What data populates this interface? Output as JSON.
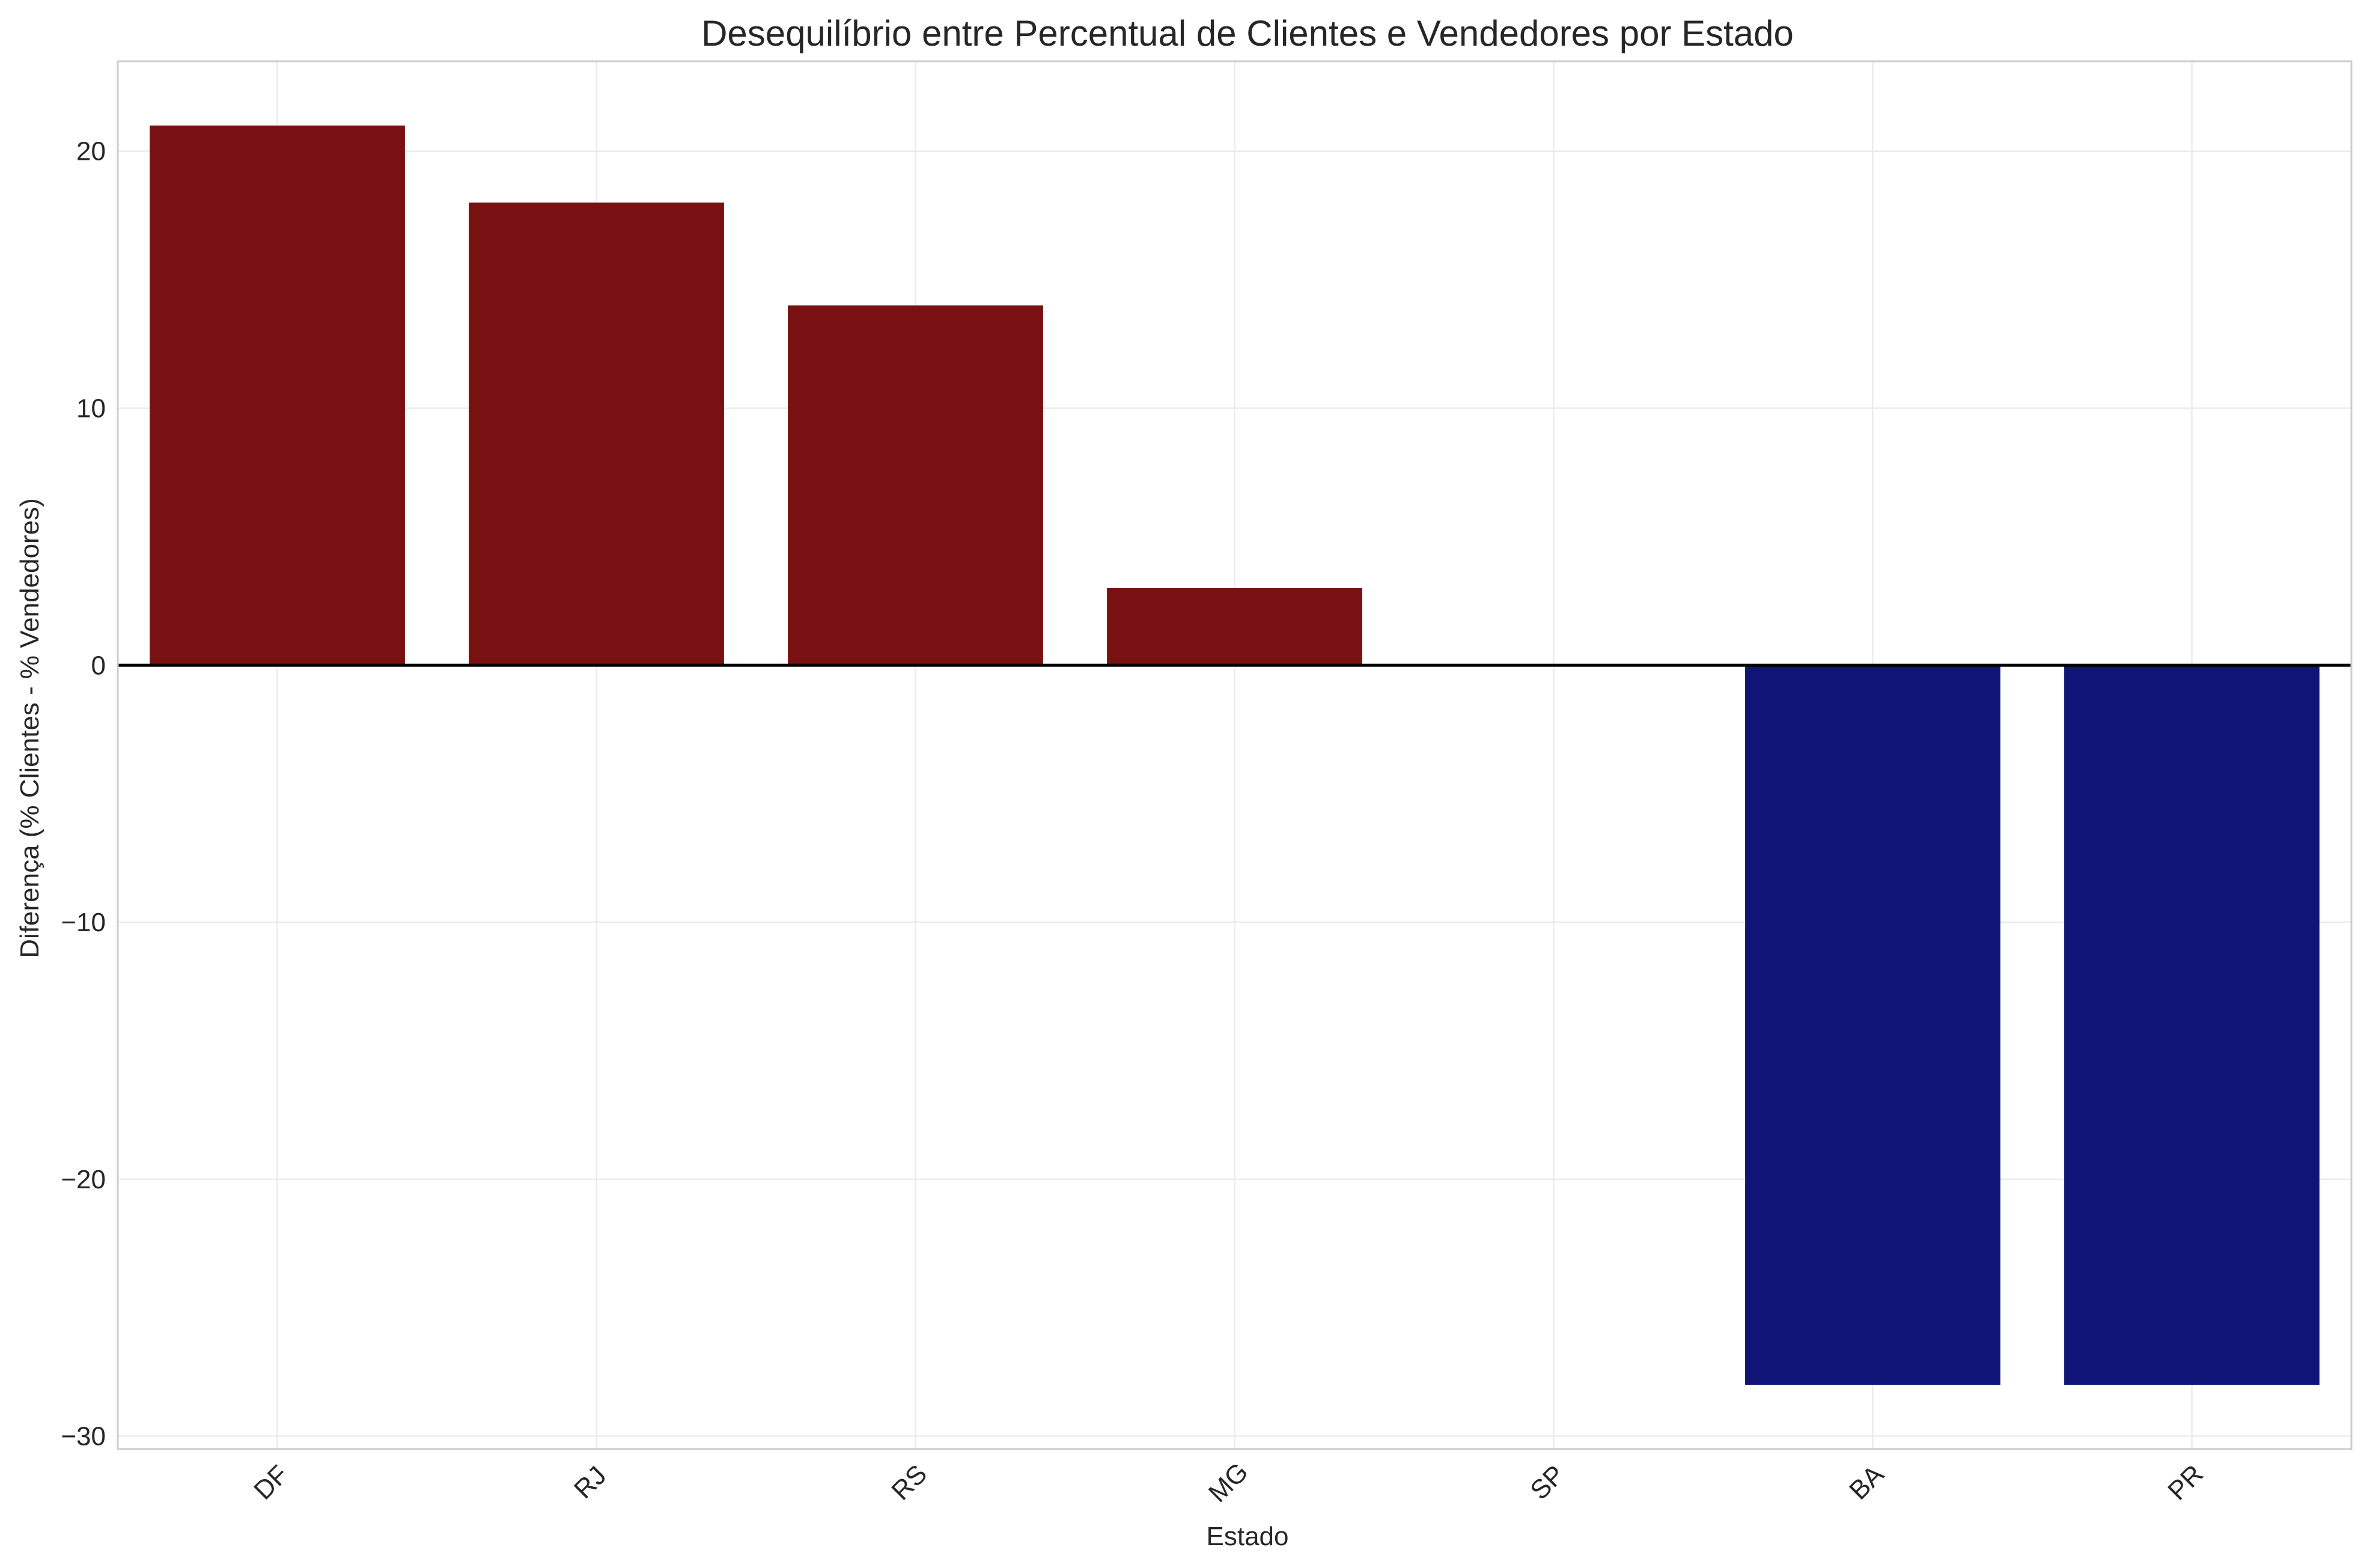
{
  "chart_data": {
    "type": "bar",
    "title": "Desequilíbrio entre Percentual de Clientes e Vendedores por Estado",
    "xlabel": "Estado",
    "ylabel": "Diferença (% Clientes - % Vendedores)",
    "categories": [
      "DF",
      "RJ",
      "RS",
      "MG",
      "SP",
      "BA",
      "PR"
    ],
    "values": [
      21,
      18,
      14,
      3,
      0,
      -28,
      -28
    ],
    "ylim": [
      -30.5,
      23.5
    ],
    "yticks": [
      -30,
      -20,
      -10,
      0,
      10,
      20
    ],
    "ytick_labels": [
      "−30",
      "−20",
      "−10",
      "0",
      "10",
      "20"
    ],
    "grid": true,
    "zero_line": true,
    "colors": {
      "positive": "#791112",
      "negative": "#101476"
    }
  }
}
